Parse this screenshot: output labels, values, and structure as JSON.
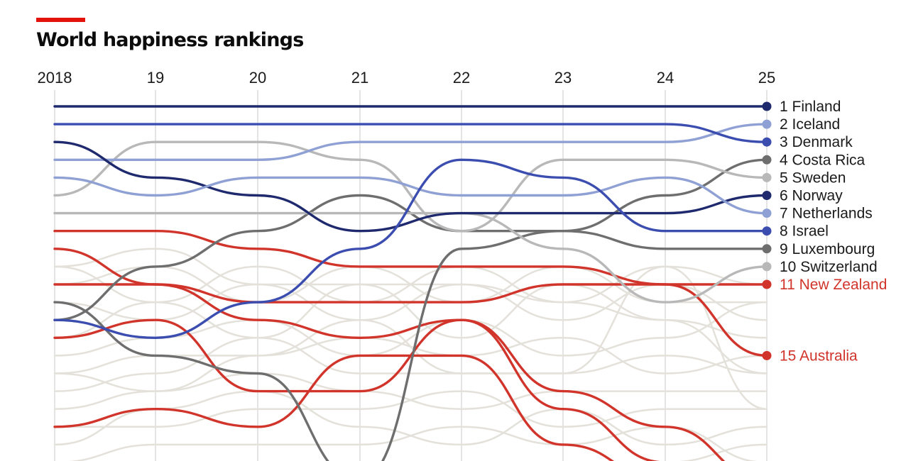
{
  "header": {
    "title": "World happiness rankings"
  },
  "colors": {
    "accent": "#e3120b",
    "navy": "#1f2a6e",
    "blue": "#3c4db0",
    "light_blue": "#8fa0d4",
    "dark_grey": "#6e6e6e",
    "light_grey": "#b8b8b8",
    "red": "#d1342a",
    "background_line": "#e3e1da",
    "gridline": "#dcdcdc"
  },
  "chart_data": {
    "type": "line",
    "title": "World happiness rankings",
    "x": [
      "2018",
      "19",
      "20",
      "21",
      "22",
      "23",
      "24",
      "25"
    ],
    "y_axis": "rank (1 at top), inverted",
    "grid": "vertical gridlines at each year",
    "series": [
      {
        "name": "Finland",
        "label": "1 Finland",
        "color": "#1f2a6e",
        "values": [
          1,
          1,
          1,
          1,
          1,
          1,
          1,
          1
        ]
      },
      {
        "name": "Iceland",
        "label": "2 Iceland",
        "color": "#8fa0d4",
        "values": [
          4,
          4,
          4,
          3,
          3,
          3,
          3,
          2
        ]
      },
      {
        "name": "Denmark",
        "label": "3 Denmark",
        "color": "#3c4db0",
        "values": [
          2,
          2,
          2,
          2,
          2,
          2,
          2,
          3
        ]
      },
      {
        "name": "Costa Rica",
        "label": "4 Costa Rica",
        "color": "#6e6e6e",
        "values": [
          13,
          10,
          8,
          6,
          8,
          8,
          6,
          4
        ]
      },
      {
        "name": "Sweden",
        "label": "5 Sweden",
        "color": "#b8b8b8",
        "values": [
          6,
          3,
          3,
          4,
          8,
          4,
          4,
          5
        ]
      },
      {
        "name": "Norway",
        "label": "6 Norway",
        "color": "#1f2a6e",
        "values": [
          3,
          5,
          6,
          8,
          7,
          7,
          7,
          6
        ]
      },
      {
        "name": "Netherlands",
        "label": "7 Netherlands",
        "color": "#8fa0d4",
        "values": [
          5,
          6,
          5,
          5,
          6,
          6,
          5,
          7
        ]
      },
      {
        "name": "Israel",
        "label": "8 Israel",
        "color": "#3c4db0",
        "values": [
          13,
          14,
          12,
          9,
          4,
          5,
          8,
          8
        ]
      },
      {
        "name": "Luxembourg",
        "label": "9 Luxembourg",
        "color": "#6e6e6e",
        "values": [
          12,
          15,
          16,
          22,
          9,
          8,
          9,
          9
        ]
      },
      {
        "name": "Switzerland",
        "label": "10 Switzerland",
        "color": "#b8b8b8",
        "values": [
          7,
          7,
          7,
          7,
          7,
          9,
          12,
          10
        ]
      },
      {
        "name": "New Zealand",
        "label": "11 New Zealand",
        "color": "#d1342a",
        "values": [
          8,
          8,
          9,
          10,
          10,
          10,
          11,
          11
        ]
      },
      {
        "name": "Australia",
        "label": "15 Australia",
        "color": "#d1342a",
        "values": [
          11,
          11,
          12,
          12,
          12,
          11,
          11,
          15
        ]
      },
      {
        "name": "",
        "label": "",
        "color": "#d1342a",
        "values": [
          9,
          11,
          13,
          14,
          13,
          17,
          19,
          22
        ]
      },
      {
        "name": "",
        "label": "",
        "color": "#d1342a",
        "values": [
          14,
          13,
          17,
          17,
          13,
          18,
          21,
          22
        ]
      },
      {
        "name": "",
        "label": "",
        "color": "#d1342a",
        "values": [
          19,
          18,
          19,
          15,
          15,
          20,
          22,
          22
        ]
      }
    ],
    "background_lines": [
      [
        10,
        12,
        10,
        12,
        10,
        12,
        10,
        11
      ],
      [
        11,
        10,
        12,
        10,
        12,
        10,
        12,
        12
      ],
      [
        12,
        13,
        11,
        13,
        11,
        13,
        11,
        13
      ],
      [
        14,
        12,
        14,
        11,
        14,
        11,
        13,
        14
      ],
      [
        15,
        14,
        13,
        15,
        13,
        15,
        14,
        12
      ],
      [
        16,
        15,
        15,
        14,
        15,
        14,
        16,
        15
      ],
      [
        17,
        16,
        14,
        16,
        16,
        16,
        15,
        16
      ],
      [
        18,
        17,
        16,
        17,
        18,
        17,
        17,
        17
      ],
      [
        19,
        19,
        18,
        18,
        17,
        19,
        18,
        18
      ],
      [
        20,
        18,
        17,
        19,
        20,
        18,
        20,
        19
      ],
      [
        21,
        20,
        20,
        20,
        19,
        20,
        19,
        21
      ],
      [
        22,
        21,
        21,
        21,
        21,
        21,
        21,
        20
      ],
      [
        10,
        9,
        11,
        11,
        11,
        12,
        13,
        16
      ],
      [
        16,
        17,
        15,
        13,
        16,
        16,
        10,
        18
      ]
    ]
  }
}
